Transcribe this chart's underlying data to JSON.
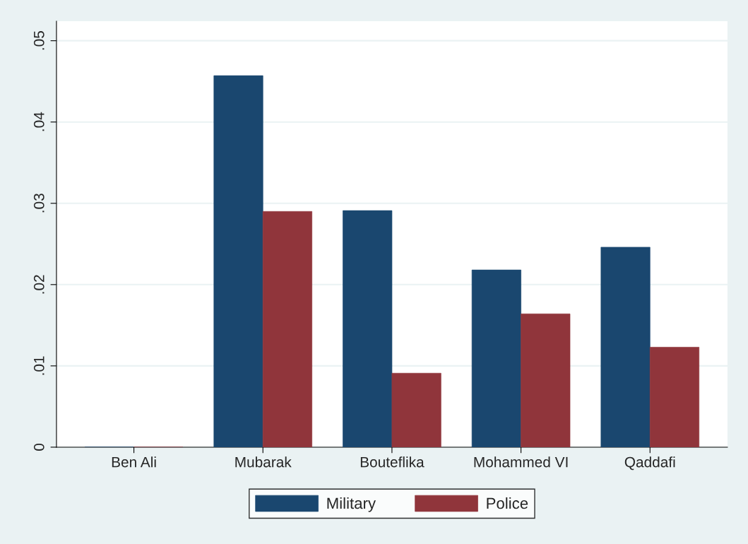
{
  "chart_data": {
    "type": "bar",
    "categories": [
      "Ben Ali",
      "Mubarak",
      "Bouteflika",
      "Mohammed VI",
      "Qaddafi"
    ],
    "series": [
      {
        "name": "Military",
        "color": "#1a476f",
        "values": [
          0,
          0.0457,
          0.0291,
          0.0218,
          0.0246
        ]
      },
      {
        "name": "Police",
        "color": "#90353b",
        "values": [
          0,
          0.029,
          0.0091,
          0.0164,
          0.0123
        ]
      }
    ],
    "ylim": [
      0,
      0.0524
    ],
    "yticks": [
      {
        "value": 0,
        "label": "0"
      },
      {
        "value": 0.01,
        "label": ".01"
      },
      {
        "value": 0.02,
        "label": ".02"
      },
      {
        "value": 0.03,
        "label": ".03"
      },
      {
        "value": 0.04,
        "label": ".04"
      },
      {
        "value": 0.05,
        "label": ".05"
      }
    ],
    "grid": "y",
    "legend": "bottom"
  }
}
